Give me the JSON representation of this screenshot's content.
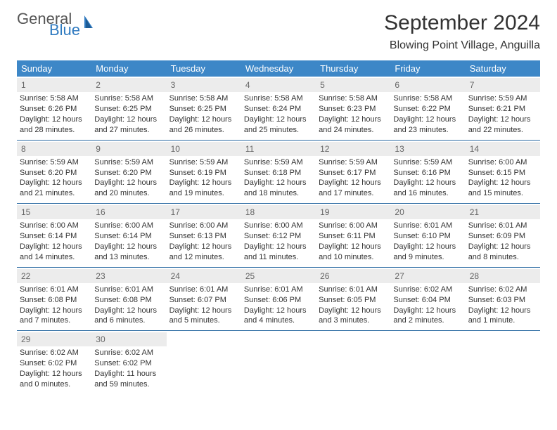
{
  "logo": {
    "text1": "General",
    "text2": "Blue"
  },
  "title": "September 2024",
  "subtitle": "Blowing Point Village, Anguilla",
  "colors": {
    "header_bg": "#3d87c7",
    "header_fg": "#ffffff",
    "divider": "#2e6da4",
    "daynum_bg": "#ececec",
    "logo_blue": "#2f7ac0"
  },
  "days_of_week": [
    "Sunday",
    "Monday",
    "Tuesday",
    "Wednesday",
    "Thursday",
    "Friday",
    "Saturday"
  ],
  "weeks": [
    [
      {
        "n": "1",
        "sunrise": "Sunrise: 5:58 AM",
        "sunset": "Sunset: 6:26 PM",
        "day1": "Daylight: 12 hours",
        "day2": "and 28 minutes."
      },
      {
        "n": "2",
        "sunrise": "Sunrise: 5:58 AM",
        "sunset": "Sunset: 6:25 PM",
        "day1": "Daylight: 12 hours",
        "day2": "and 27 minutes."
      },
      {
        "n": "3",
        "sunrise": "Sunrise: 5:58 AM",
        "sunset": "Sunset: 6:25 PM",
        "day1": "Daylight: 12 hours",
        "day2": "and 26 minutes."
      },
      {
        "n": "4",
        "sunrise": "Sunrise: 5:58 AM",
        "sunset": "Sunset: 6:24 PM",
        "day1": "Daylight: 12 hours",
        "day2": "and 25 minutes."
      },
      {
        "n": "5",
        "sunrise": "Sunrise: 5:58 AM",
        "sunset": "Sunset: 6:23 PM",
        "day1": "Daylight: 12 hours",
        "day2": "and 24 minutes."
      },
      {
        "n": "6",
        "sunrise": "Sunrise: 5:58 AM",
        "sunset": "Sunset: 6:22 PM",
        "day1": "Daylight: 12 hours",
        "day2": "and 23 minutes."
      },
      {
        "n": "7",
        "sunrise": "Sunrise: 5:59 AM",
        "sunset": "Sunset: 6:21 PM",
        "day1": "Daylight: 12 hours",
        "day2": "and 22 minutes."
      }
    ],
    [
      {
        "n": "8",
        "sunrise": "Sunrise: 5:59 AM",
        "sunset": "Sunset: 6:20 PM",
        "day1": "Daylight: 12 hours",
        "day2": "and 21 minutes."
      },
      {
        "n": "9",
        "sunrise": "Sunrise: 5:59 AM",
        "sunset": "Sunset: 6:20 PM",
        "day1": "Daylight: 12 hours",
        "day2": "and 20 minutes."
      },
      {
        "n": "10",
        "sunrise": "Sunrise: 5:59 AM",
        "sunset": "Sunset: 6:19 PM",
        "day1": "Daylight: 12 hours",
        "day2": "and 19 minutes."
      },
      {
        "n": "11",
        "sunrise": "Sunrise: 5:59 AM",
        "sunset": "Sunset: 6:18 PM",
        "day1": "Daylight: 12 hours",
        "day2": "and 18 minutes."
      },
      {
        "n": "12",
        "sunrise": "Sunrise: 5:59 AM",
        "sunset": "Sunset: 6:17 PM",
        "day1": "Daylight: 12 hours",
        "day2": "and 17 minutes."
      },
      {
        "n": "13",
        "sunrise": "Sunrise: 5:59 AM",
        "sunset": "Sunset: 6:16 PM",
        "day1": "Daylight: 12 hours",
        "day2": "and 16 minutes."
      },
      {
        "n": "14",
        "sunrise": "Sunrise: 6:00 AM",
        "sunset": "Sunset: 6:15 PM",
        "day1": "Daylight: 12 hours",
        "day2": "and 15 minutes."
      }
    ],
    [
      {
        "n": "15",
        "sunrise": "Sunrise: 6:00 AM",
        "sunset": "Sunset: 6:14 PM",
        "day1": "Daylight: 12 hours",
        "day2": "and 14 minutes."
      },
      {
        "n": "16",
        "sunrise": "Sunrise: 6:00 AM",
        "sunset": "Sunset: 6:14 PM",
        "day1": "Daylight: 12 hours",
        "day2": "and 13 minutes."
      },
      {
        "n": "17",
        "sunrise": "Sunrise: 6:00 AM",
        "sunset": "Sunset: 6:13 PM",
        "day1": "Daylight: 12 hours",
        "day2": "and 12 minutes."
      },
      {
        "n": "18",
        "sunrise": "Sunrise: 6:00 AM",
        "sunset": "Sunset: 6:12 PM",
        "day1": "Daylight: 12 hours",
        "day2": "and 11 minutes."
      },
      {
        "n": "19",
        "sunrise": "Sunrise: 6:00 AM",
        "sunset": "Sunset: 6:11 PM",
        "day1": "Daylight: 12 hours",
        "day2": "and 10 minutes."
      },
      {
        "n": "20",
        "sunrise": "Sunrise: 6:01 AM",
        "sunset": "Sunset: 6:10 PM",
        "day1": "Daylight: 12 hours",
        "day2": "and 9 minutes."
      },
      {
        "n": "21",
        "sunrise": "Sunrise: 6:01 AM",
        "sunset": "Sunset: 6:09 PM",
        "day1": "Daylight: 12 hours",
        "day2": "and 8 minutes."
      }
    ],
    [
      {
        "n": "22",
        "sunrise": "Sunrise: 6:01 AM",
        "sunset": "Sunset: 6:08 PM",
        "day1": "Daylight: 12 hours",
        "day2": "and 7 minutes."
      },
      {
        "n": "23",
        "sunrise": "Sunrise: 6:01 AM",
        "sunset": "Sunset: 6:08 PM",
        "day1": "Daylight: 12 hours",
        "day2": "and 6 minutes."
      },
      {
        "n": "24",
        "sunrise": "Sunrise: 6:01 AM",
        "sunset": "Sunset: 6:07 PM",
        "day1": "Daylight: 12 hours",
        "day2": "and 5 minutes."
      },
      {
        "n": "25",
        "sunrise": "Sunrise: 6:01 AM",
        "sunset": "Sunset: 6:06 PM",
        "day1": "Daylight: 12 hours",
        "day2": "and 4 minutes."
      },
      {
        "n": "26",
        "sunrise": "Sunrise: 6:01 AM",
        "sunset": "Sunset: 6:05 PM",
        "day1": "Daylight: 12 hours",
        "day2": "and 3 minutes."
      },
      {
        "n": "27",
        "sunrise": "Sunrise: 6:02 AM",
        "sunset": "Sunset: 6:04 PM",
        "day1": "Daylight: 12 hours",
        "day2": "and 2 minutes."
      },
      {
        "n": "28",
        "sunrise": "Sunrise: 6:02 AM",
        "sunset": "Sunset: 6:03 PM",
        "day1": "Daylight: 12 hours",
        "day2": "and 1 minute."
      }
    ],
    [
      {
        "n": "29",
        "sunrise": "Sunrise: 6:02 AM",
        "sunset": "Sunset: 6:02 PM",
        "day1": "Daylight: 12 hours",
        "day2": "and 0 minutes."
      },
      {
        "n": "30",
        "sunrise": "Sunrise: 6:02 AM",
        "sunset": "Sunset: 6:02 PM",
        "day1": "Daylight: 11 hours",
        "day2": "and 59 minutes."
      },
      null,
      null,
      null,
      null,
      null
    ]
  ]
}
